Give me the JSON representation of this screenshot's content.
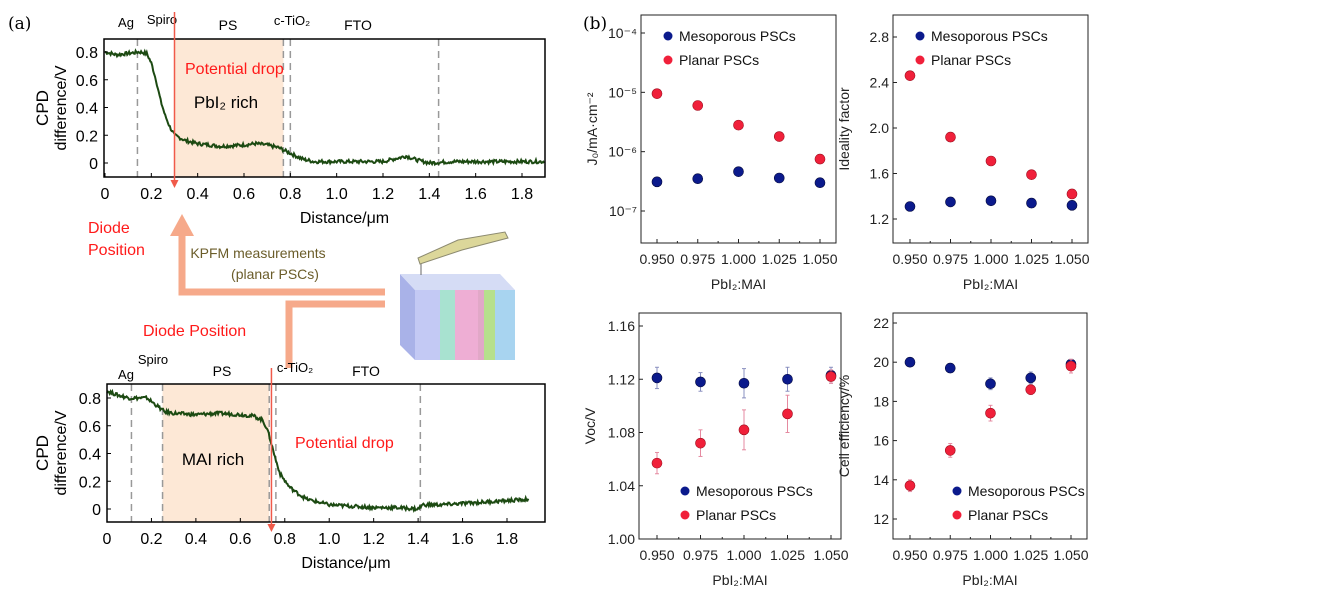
{
  "panel_labels": {
    "a": "(a)",
    "b": "(b)"
  },
  "colors": {
    "mesoporous": "#0b1a8c",
    "planar": "#f0203a",
    "curve": "#1c4a12",
    "shade": "#fde8d6",
    "arrow": "#f6a98a",
    "red_text": "#ff1a1a",
    "kpfm_text": "#6b5d2a"
  },
  "schematic": {
    "kpfm_label_line1": "KPFM measurements",
    "kpfm_label_line2": "(planar PSCs)",
    "diode_top_line1": "Diode",
    "diode_top_line2": "Position",
    "diode_bottom": "Diode Position"
  },
  "chart_data": [
    {
      "id": "cpd-pbi2-rich",
      "type": "line",
      "xlabel": "Distance/μm",
      "ylabel_line1": "CPD",
      "ylabel_line2": "difference/V",
      "xticks": [
        "0",
        "0.2",
        "0.4",
        "0.6",
        "0.8",
        "1.0",
        "1.2",
        "1.4",
        "1.6",
        "1.8"
      ],
      "yticks": [
        "0",
        "0.2",
        "0.4",
        "0.6",
        "0.8"
      ],
      "xlim": [
        0,
        1.9
      ],
      "ylim": [
        -0.1,
        0.9
      ],
      "layers": [
        "Ag",
        "Spiro",
        "PS",
        "c-TiO₂",
        "FTO"
      ],
      "region_label": "PbI₂ rich",
      "drop_label": "Potential drop",
      "shaded_region": [
        0.3,
        0.77
      ],
      "layer_boundaries": [
        0.14,
        0.77,
        0.8,
        1.44
      ],
      "diode_position": 0.3,
      "x": [
        0,
        0.05,
        0.1,
        0.15,
        0.18,
        0.2,
        0.22,
        0.24,
        0.26,
        0.28,
        0.3,
        0.35,
        0.4,
        0.5,
        0.6,
        0.65,
        0.7,
        0.75,
        0.8,
        0.85,
        0.9,
        1.0,
        1.1,
        1.2,
        1.3,
        1.35,
        1.4,
        1.5,
        1.6,
        1.7,
        1.8,
        1.9
      ],
      "y": [
        0.8,
        0.78,
        0.79,
        0.8,
        0.79,
        0.72,
        0.6,
        0.45,
        0.34,
        0.26,
        0.2,
        0.16,
        0.14,
        0.12,
        0.13,
        0.14,
        0.13,
        0.11,
        0.07,
        0.03,
        0.01,
        0.01,
        0.01,
        0.01,
        0.05,
        0.02,
        0.0,
        0.01,
        0.01,
        0.01,
        0.01,
        0.01
      ]
    },
    {
      "id": "cpd-mai-rich",
      "type": "line",
      "xlabel": "Distance/μm",
      "ylabel_line1": "CPD",
      "ylabel_line2": "difference/V",
      "xticks": [
        "0",
        "0.2",
        "0.4",
        "0.6",
        "0.8",
        "1.0",
        "1.2",
        "1.4",
        "1.6",
        "1.8"
      ],
      "yticks": [
        "0",
        "0.2",
        "0.4",
        "0.6",
        "0.8"
      ],
      "xlim": [
        0,
        1.9
      ],
      "ylim": [
        -0.1,
        0.9
      ],
      "layers": [
        "Ag",
        "Spiro",
        "PS",
        "c-TiO₂",
        "FTO"
      ],
      "region_label": "MAI rich",
      "drop_label": "Potential drop",
      "shaded_region": [
        0.25,
        0.73
      ],
      "layer_boundaries": [
        0.11,
        0.25,
        0.73,
        0.76,
        1.41
      ],
      "diode_position": 0.74,
      "x": [
        0,
        0.05,
        0.1,
        0.18,
        0.22,
        0.26,
        0.3,
        0.4,
        0.5,
        0.6,
        0.66,
        0.7,
        0.72,
        0.74,
        0.76,
        0.78,
        0.82,
        0.86,
        0.9,
        1.0,
        1.1,
        1.2,
        1.3,
        1.4,
        1.42,
        1.5,
        1.6,
        1.7,
        1.8,
        1.9
      ],
      "y": [
        0.85,
        0.82,
        0.8,
        0.8,
        0.75,
        0.7,
        0.69,
        0.68,
        0.69,
        0.68,
        0.67,
        0.64,
        0.58,
        0.47,
        0.35,
        0.25,
        0.16,
        0.11,
        0.07,
        0.03,
        0.02,
        0.01,
        0.01,
        0.0,
        0.03,
        0.03,
        0.04,
        0.05,
        0.06,
        0.07
      ]
    },
    {
      "id": "j0",
      "type": "scatter",
      "xlabel": "PbI₂:MAI",
      "ylabel": "J₀/mA·cm⁻²",
      "yscale": "log",
      "xticks": [
        "0.950",
        "0.975",
        "1.000",
        "1.025",
        "1.050"
      ],
      "yticks": [
        "10⁻⁷",
        "10⁻⁶",
        "10⁻⁵",
        "10⁻⁴"
      ],
      "xlim": [
        0.94,
        1.062
      ],
      "ylim": [
        3e-08,
        0.0002
      ],
      "legend_position": "top-left",
      "x": [
        0.95,
        0.975,
        1.0,
        1.025,
        1.05
      ],
      "series": [
        {
          "name": "Mesoporous PSCs",
          "values": [
            3.1e-07,
            3.5e-07,
            4.6e-07,
            3.6e-07,
            3e-07
          ]
        },
        {
          "name": "Planar PSCs",
          "values": [
            9.5e-06,
            6e-06,
            2.8e-06,
            1.8e-06,
            7.5e-07
          ]
        }
      ]
    },
    {
      "id": "ideality",
      "type": "scatter",
      "xlabel": "PbI₂:MAI",
      "ylabel": "Ideality factor",
      "xticks": [
        "0.950",
        "0.975",
        "1.000",
        "1.025",
        "1.050"
      ],
      "yticks": [
        "1.2",
        "1.6",
        "2.0",
        "2.4",
        "2.8"
      ],
      "xlim": [
        0.94,
        1.062
      ],
      "ylim": [
        1.0,
        3.0
      ],
      "legend_position": "top-right",
      "x": [
        0.95,
        0.975,
        1.0,
        1.025,
        1.05
      ],
      "series": [
        {
          "name": "Mesoporous PSCs",
          "values": [
            1.31,
            1.35,
            1.36,
            1.34,
            1.32
          ]
        },
        {
          "name": "Planar PSCs",
          "values": [
            2.46,
            1.92,
            1.71,
            1.59,
            1.42
          ]
        }
      ]
    },
    {
      "id": "voc",
      "type": "scatter",
      "xlabel": "PbI₂:MAI",
      "ylabel": "Voc/V",
      "xticks": [
        "0.950",
        "0.975",
        "1.000",
        "1.025",
        "1.050"
      ],
      "yticks": [
        "1.00",
        "1.04",
        "1.08",
        "1.12",
        "1.16"
      ],
      "xlim": [
        0.94,
        1.062
      ],
      "ylim": [
        1.0,
        1.17
      ],
      "legend_position": "bottom-center",
      "x": [
        0.95,
        0.975,
        1.0,
        1.025,
        1.05
      ],
      "series": [
        {
          "name": "Mesoporous PSCs",
          "values": [
            1.121,
            1.118,
            1.117,
            1.12,
            1.123
          ],
          "errors": [
            0.008,
            0.007,
            0.011,
            0.009,
            0.006
          ]
        },
        {
          "name": "Planar PSCs",
          "values": [
            1.057,
            1.072,
            1.082,
            1.094,
            1.122
          ],
          "errors": [
            0.008,
            0.01,
            0.015,
            0.014,
            0.005
          ]
        }
      ]
    },
    {
      "id": "efficiency",
      "type": "scatter",
      "xlabel": "PbI₂:MAI",
      "ylabel": "Cell efficiency/%",
      "xticks": [
        "0.950",
        "0.975",
        "1.000",
        "1.025",
        "1.050"
      ],
      "yticks": [
        "12",
        "14",
        "16",
        "18",
        "20",
        "22"
      ],
      "xlim": [
        0.94,
        1.062
      ],
      "ylim": [
        11,
        23
      ],
      "legend_position": "bottom-center",
      "x": [
        0.95,
        0.975,
        1.0,
        1.025,
        1.05
      ],
      "series": [
        {
          "name": "Mesoporous PSCs",
          "values": [
            20.0,
            19.7,
            18.9,
            19.2,
            19.9
          ],
          "errors": [
            0.15,
            0.15,
            0.3,
            0.3,
            0.2
          ]
        },
        {
          "name": "Planar PSCs",
          "values": [
            13.7,
            15.5,
            17.4,
            18.6,
            19.8
          ],
          "errors": [
            0.3,
            0.35,
            0.4,
            0.25,
            0.35
          ]
        }
      ]
    }
  ]
}
